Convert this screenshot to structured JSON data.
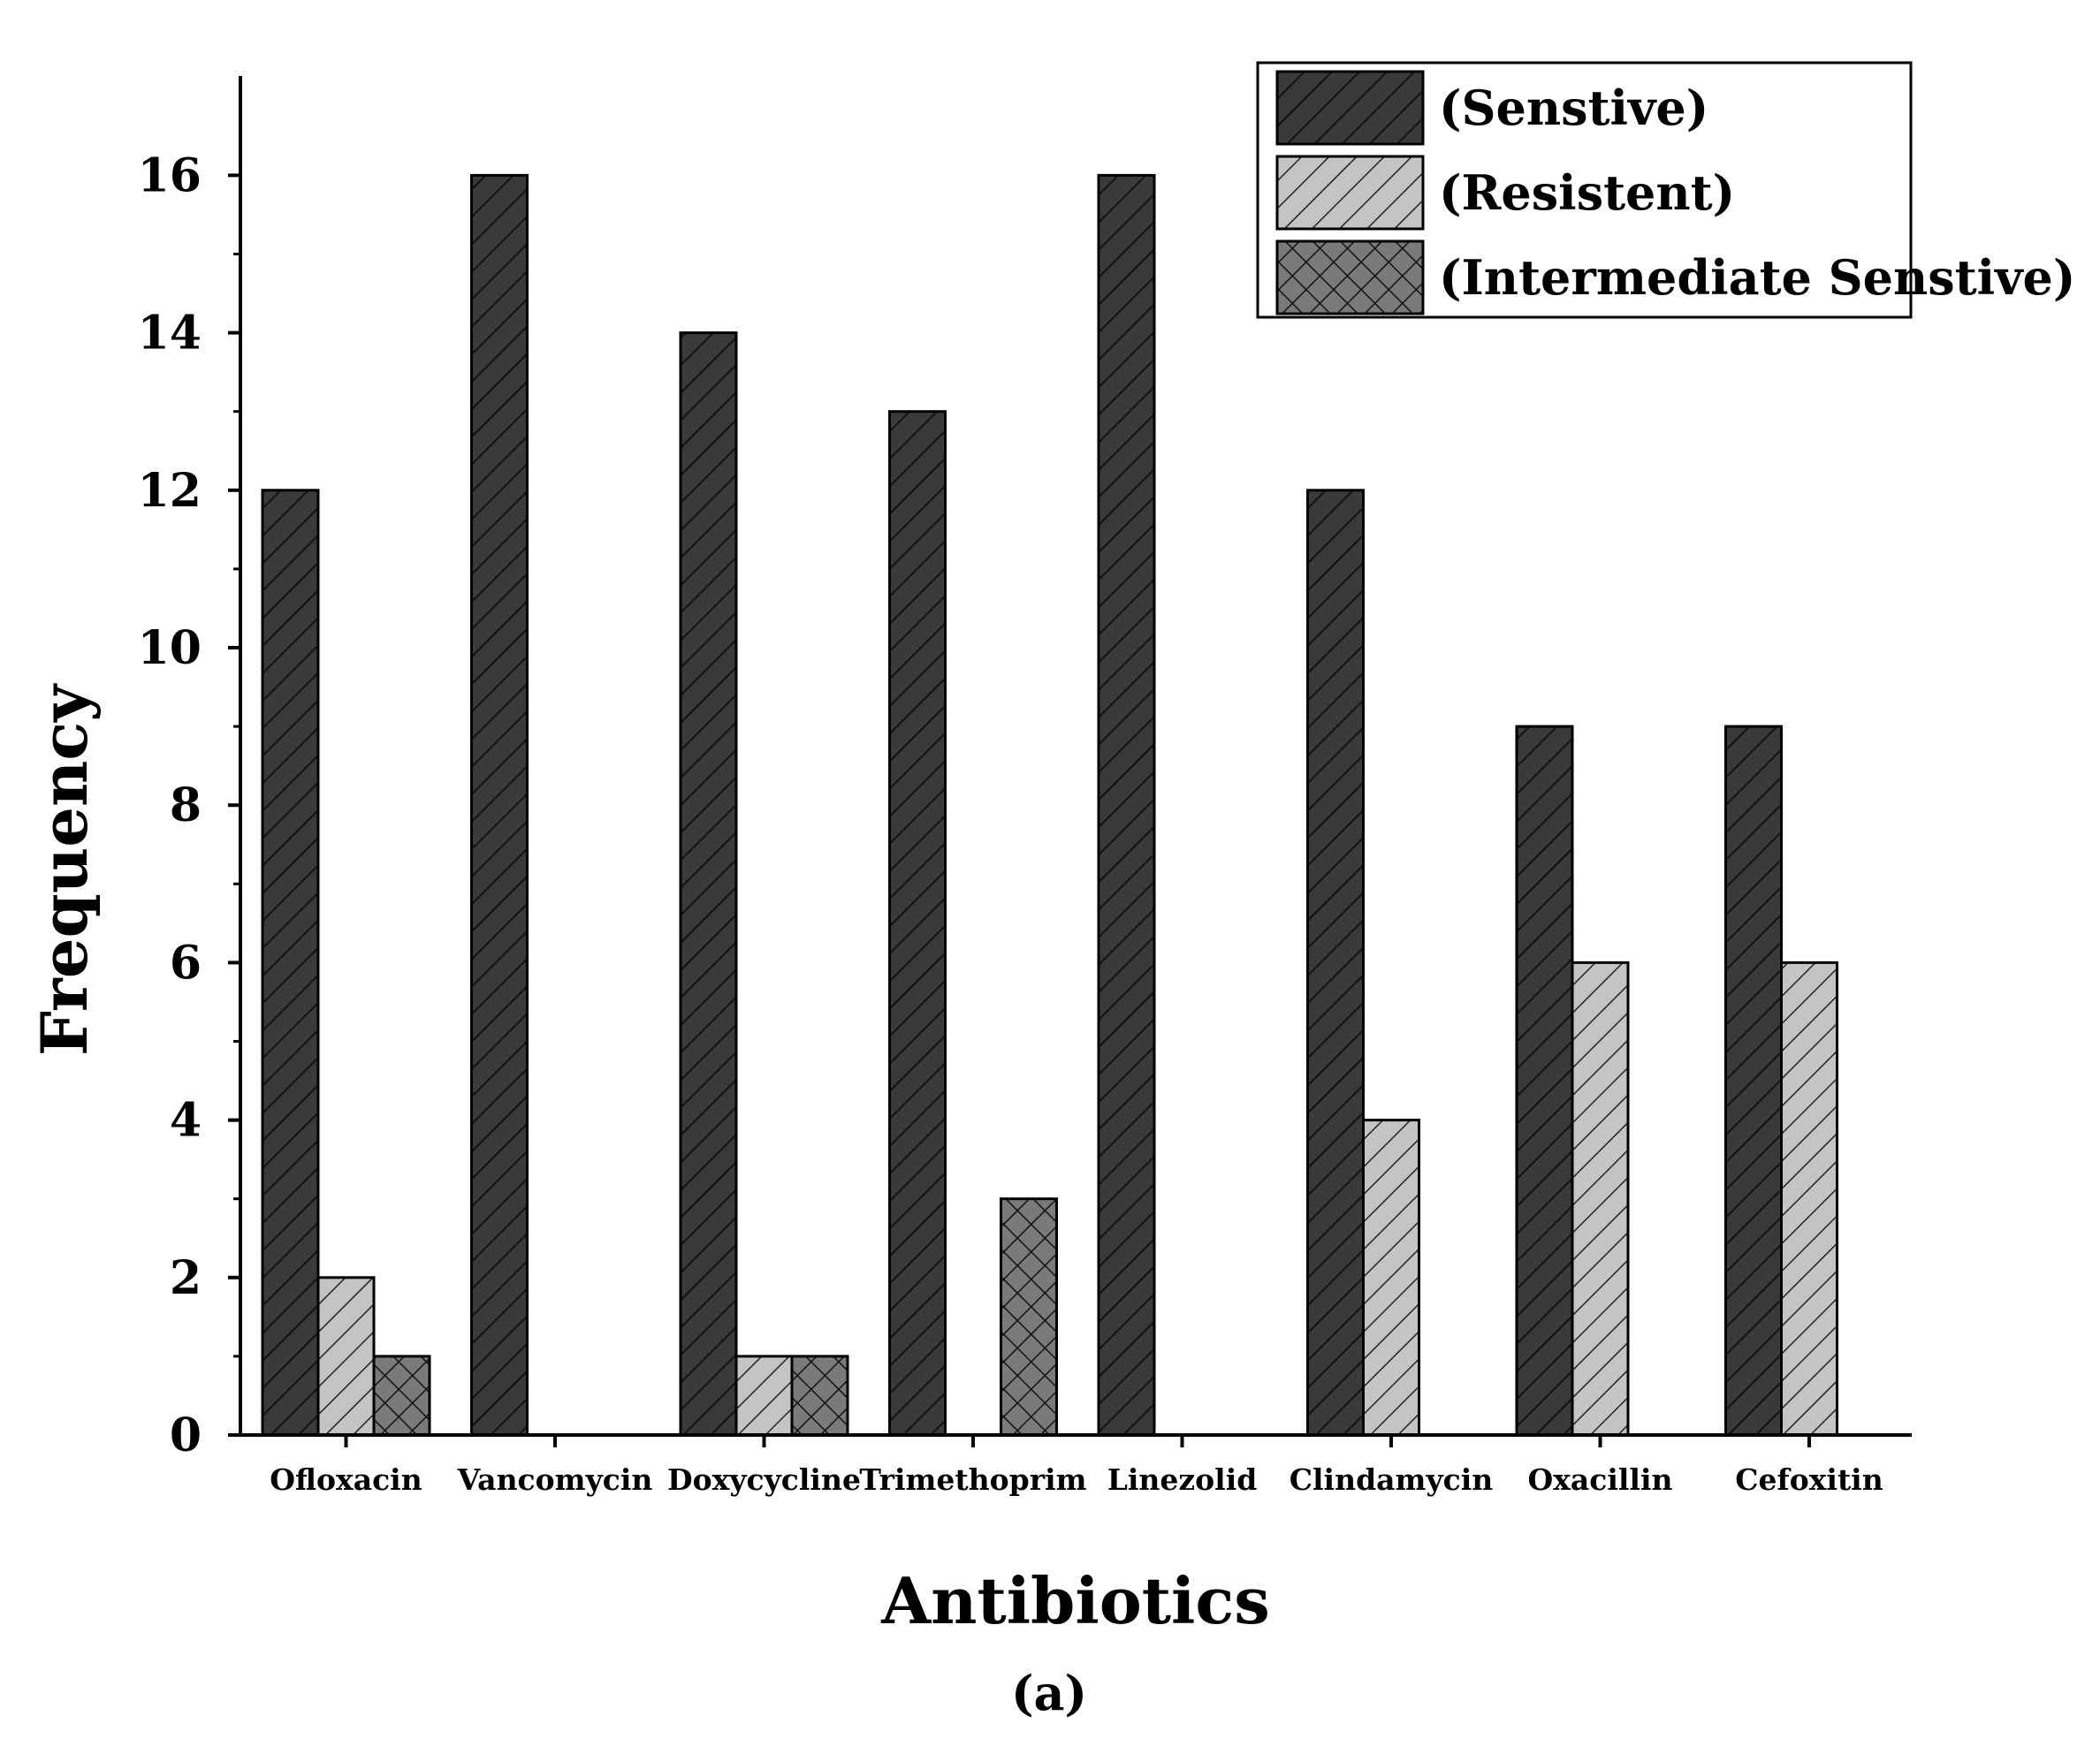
{
  "chart_data": {
    "type": "bar",
    "title": "",
    "xlabel": "Antibiotics",
    "ylabel": "Frequency",
    "ylim": [
      0,
      17.2
    ],
    "yticks": [
      0,
      2,
      4,
      6,
      8,
      10,
      12,
      14,
      16
    ],
    "categories": [
      "Ofloxacin",
      "Vancomycin",
      "Doxycycline",
      "Trimethoprim",
      "Linezolid",
      "Clindamycin",
      "Oxacillin",
      "Cefoxitin"
    ],
    "series": [
      {
        "name": "(Senstive)",
        "color": "#3a3a3a",
        "pattern": "diagonal",
        "values": [
          12,
          16,
          14,
          13,
          16,
          12,
          9,
          9
        ]
      },
      {
        "name": "(Resistent)",
        "color": "#c4c4c4",
        "pattern": "diagonal",
        "values": [
          2,
          0,
          1,
          0,
          0,
          4,
          6,
          6
        ]
      },
      {
        "name": "(Intermediate Senstive)",
        "color": "#7a7a7a",
        "pattern": "crosshatch",
        "values": [
          1,
          0,
          1,
          3,
          0,
          0,
          0,
          0
        ]
      }
    ],
    "legend_position": "top-right",
    "panel_label": "(a)"
  }
}
